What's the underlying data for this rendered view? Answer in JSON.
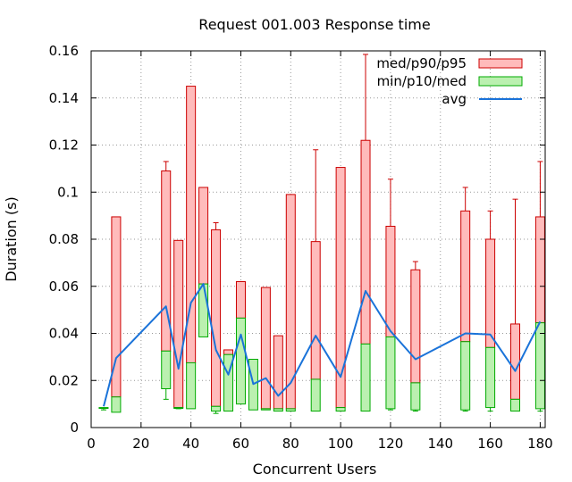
{
  "chart_data": {
    "type": "bar",
    "title": "Request 001.003 Response time",
    "xlabel": "Concurrent Users",
    "ylabel": "Duration (s)",
    "xlim": [
      0,
      182
    ],
    "ylim": [
      0,
      0.16
    ],
    "grid": true,
    "legend_position": "top-right",
    "x_ticks": [
      0,
      20,
      40,
      60,
      80,
      100,
      120,
      140,
      160,
      180
    ],
    "x_tick_labels": [
      "0",
      "20",
      "40",
      "60",
      "80",
      "100",
      "120",
      "140",
      "160",
      "180"
    ],
    "y_ticks": [
      0,
      0.02,
      0.04,
      0.06,
      0.08,
      0.1,
      0.12,
      0.14,
      0.16
    ],
    "y_tick_labels": [
      "0",
      "0.02",
      "0.04",
      "0.06",
      "0.08",
      "0.1",
      "0.12",
      "0.14",
      "0.16"
    ],
    "legend": [
      {
        "label": "med/p90/p95",
        "kind": "box",
        "fill": "#ffbbbb",
        "stroke": "#cc0000"
      },
      {
        "label": "min/p10/med",
        "kind": "box",
        "fill": "#bbf0b0",
        "stroke": "#00aa00"
      },
      {
        "label": "avg",
        "kind": "line",
        "stroke": "#1a73d9"
      }
    ],
    "colors": {
      "red_fill": "#ffbbbb",
      "red_stroke": "#cc0000",
      "green_fill": "#bbf0b0",
      "green_stroke": "#00aa00",
      "avg_line": "#1a73d9",
      "grid": "#999999"
    },
    "series": [
      {
        "users": 5,
        "min": 0.0075,
        "p10": 0.0085,
        "med": 0.0085,
        "p90": 0.0085,
        "p95": 0.0085,
        "avg": 0.009
      },
      {
        "users": 10,
        "min": 0.0065,
        "p10": 0.0065,
        "med": 0.013,
        "p90": 0.0895,
        "p95": 0.0895,
        "avg": 0.0295
      },
      {
        "users": 30,
        "min": 0.012,
        "p10": 0.0165,
        "med": 0.0325,
        "p90": 0.109,
        "p95": 0.113,
        "avg": 0.0515
      },
      {
        "users": 35,
        "min": 0.008,
        "p10": 0.0085,
        "med": 0.0085,
        "p90": 0.0795,
        "p95": 0.0795,
        "avg": 0.025
      },
      {
        "users": 40,
        "min": 0.008,
        "p10": 0.008,
        "med": 0.0275,
        "p90": 0.145,
        "p95": 0.145,
        "avg": 0.053
      },
      {
        "users": 45,
        "min": 0.0385,
        "p10": 0.0385,
        "med": 0.061,
        "p90": 0.102,
        "p95": 0.102,
        "avg": 0.061
      },
      {
        "users": 50,
        "min": 0.006,
        "p10": 0.007,
        "med": 0.009,
        "p90": 0.084,
        "p95": 0.087,
        "avg": 0.033
      },
      {
        "users": 55,
        "min": 0.007,
        "p10": 0.007,
        "med": 0.031,
        "p90": 0.033,
        "p95": 0.033,
        "avg": 0.0225
      },
      {
        "users": 60,
        "min": 0.01,
        "p10": 0.01,
        "med": 0.0465,
        "p90": 0.062,
        "p95": 0.062,
        "avg": 0.0395
      },
      {
        "users": 65,
        "min": 0.0075,
        "p10": 0.0075,
        "med": 0.029,
        "p90": 0.029,
        "p95": 0.029,
        "avg": 0.0185
      },
      {
        "users": 70,
        "min": 0.0075,
        "p10": 0.0075,
        "med": 0.008,
        "p90": 0.0595,
        "p95": 0.0595,
        "avg": 0.021
      },
      {
        "users": 75,
        "min": 0.007,
        "p10": 0.007,
        "med": 0.008,
        "p90": 0.039,
        "p95": 0.039,
        "avg": 0.0135
      },
      {
        "users": 80,
        "min": 0.007,
        "p10": 0.007,
        "med": 0.008,
        "p90": 0.099,
        "p95": 0.099,
        "avg": 0.019
      },
      {
        "users": 90,
        "min": 0.007,
        "p10": 0.007,
        "med": 0.0205,
        "p90": 0.079,
        "p95": 0.118,
        "avg": 0.039
      },
      {
        "users": 100,
        "min": 0.007,
        "p10": 0.007,
        "med": 0.0085,
        "p90": 0.1105,
        "p95": 0.1105,
        "avg": 0.0215
      },
      {
        "users": 110,
        "min": 0.007,
        "p10": 0.007,
        "med": 0.0355,
        "p90": 0.122,
        "p95": 0.1585,
        "avg": 0.058
      },
      {
        "users": 120,
        "min": 0.0075,
        "p10": 0.008,
        "med": 0.0385,
        "p90": 0.0855,
        "p95": 0.1055,
        "avg": 0.041
      },
      {
        "users": 130,
        "min": 0.007,
        "p10": 0.0075,
        "med": 0.019,
        "p90": 0.067,
        "p95": 0.0705,
        "avg": 0.029
      },
      {
        "users": 150,
        "min": 0.007,
        "p10": 0.0075,
        "med": 0.0365,
        "p90": 0.092,
        "p95": 0.102,
        "avg": 0.04
      },
      {
        "users": 160,
        "min": 0.007,
        "p10": 0.0085,
        "med": 0.034,
        "p90": 0.08,
        "p95": 0.092,
        "avg": 0.0395
      },
      {
        "users": 170,
        "min": 0.007,
        "p10": 0.007,
        "med": 0.012,
        "p90": 0.044,
        "p95": 0.097,
        "avg": 0.024
      },
      {
        "users": 180,
        "min": 0.007,
        "p10": 0.008,
        "med": 0.0445,
        "p90": 0.0895,
        "p95": 0.113,
        "avg": 0.045
      }
    ]
  }
}
